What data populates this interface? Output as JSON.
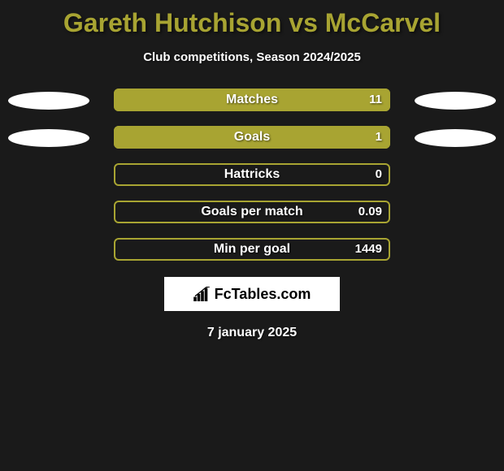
{
  "title": "Gareth Hutchison vs McCarvel",
  "subtitle": "Club competitions, Season 2024/2025",
  "date": "7 january 2025",
  "logo": {
    "text": "FcTables.com"
  },
  "colors": {
    "background": "#1a1a1a",
    "accent": "#a8a432",
    "text": "#ffffff",
    "ellipse": "#ffffff",
    "logo_bg": "#ffffff",
    "logo_text": "#000000"
  },
  "stats": [
    {
      "label": "Matches",
      "value": "11",
      "fill_percent": 100,
      "show_left_ellipse": true,
      "show_right_ellipse": true
    },
    {
      "label": "Goals",
      "value": "1",
      "fill_percent": 100,
      "show_left_ellipse": true,
      "show_right_ellipse": true
    },
    {
      "label": "Hattricks",
      "value": "0",
      "fill_percent": 0,
      "show_left_ellipse": false,
      "show_right_ellipse": false
    },
    {
      "label": "Goals per match",
      "value": "0.09",
      "fill_percent": 0,
      "show_left_ellipse": false,
      "show_right_ellipse": false
    },
    {
      "label": "Min per goal",
      "value": "1449",
      "fill_percent": 0,
      "show_left_ellipse": false,
      "show_right_ellipse": false
    }
  ]
}
